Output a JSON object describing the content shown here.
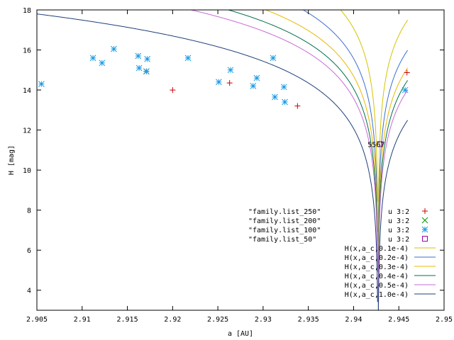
{
  "chart_data": {
    "type": "scatter",
    "xlabel": "a [AU]",
    "ylabel": "H [mag]",
    "xlim": [
      2.905,
      2.95
    ],
    "ylim": [
      3,
      18
    ],
    "x_ticks": [
      {
        "value": 2.905,
        "label": "2.905"
      },
      {
        "value": 2.91,
        "label": "2.91"
      },
      {
        "value": 2.915,
        "label": "2.915"
      },
      {
        "value": 2.92,
        "label": "2.92"
      },
      {
        "value": 2.925,
        "label": "2.925"
      },
      {
        "value": 2.93,
        "label": "2.93"
      },
      {
        "value": 2.935,
        "label": "2.935"
      },
      {
        "value": 2.94,
        "label": "2.94"
      },
      {
        "value": 2.945,
        "label": "2.945"
      },
      {
        "value": 2.95,
        "label": "2.95"
      }
    ],
    "y_ticks": [
      {
        "value": 4,
        "label": "4"
      },
      {
        "value": 6,
        "label": "6"
      },
      {
        "value": 8,
        "label": "8"
      },
      {
        "value": 10,
        "label": "10"
      },
      {
        "value": 12,
        "label": "12"
      },
      {
        "value": 14,
        "label": "14"
      },
      {
        "value": 16,
        "label": "16"
      },
      {
        "value": 18,
        "label": "18"
      }
    ],
    "grid": false,
    "legend_position": "bottom-right",
    "annotation": {
      "text": "5567",
      "x": 2.9425,
      "y": 11.3
    },
    "scatter_series": [
      {
        "name": "\"family.list_250\"",
        "legend_suffix": "u 3:2",
        "marker": "plus",
        "color": "#cc0000",
        "points": [
          [
            2.92,
            14.0
          ],
          [
            2.9263,
            14.35
          ],
          [
            2.9338,
            13.2
          ],
          [
            2.9459,
            14.87
          ],
          [
            2.9171,
            14.93
          ]
        ]
      },
      {
        "name": "\"family.list_200\"",
        "legend_suffix": "u 3:2",
        "marker": "cross",
        "color": "#009900",
        "points": [
          [
            2.9171,
            14.93
          ]
        ]
      },
      {
        "name": "\"family.list_100\"",
        "legend_suffix": "u 3:2",
        "marker": "star",
        "color": "#1a9ae6",
        "points": [
          [
            2.9055,
            14.3
          ],
          [
            2.9112,
            15.6
          ],
          [
            2.9122,
            15.35
          ],
          [
            2.9135,
            16.05
          ],
          [
            2.9162,
            15.7
          ],
          [
            2.9163,
            15.1
          ],
          [
            2.9172,
            15.55
          ],
          [
            2.9217,
            15.6
          ],
          [
            2.9251,
            14.4
          ],
          [
            2.9264,
            15.0
          ],
          [
            2.9289,
            14.2
          ],
          [
            2.9293,
            14.6
          ],
          [
            2.9311,
            15.6
          ],
          [
            2.9313,
            13.65
          ],
          [
            2.9323,
            14.15
          ],
          [
            2.9324,
            13.4
          ],
          [
            2.9457,
            14.0
          ],
          [
            2.9171,
            14.93
          ]
        ]
      },
      {
        "name": "\"family.list_50\"",
        "legend_suffix": "u 3:2",
        "marker": "square",
        "color": "#9900aa",
        "points": [
          [
            2.9429,
            11.3
          ]
        ]
      }
    ],
    "curve_series": [
      {
        "name": "H(x,a_c,0.1e-4)",
        "C": 0.1,
        "color": "#d4c400"
      },
      {
        "name": "H(x,a_c,0.2e-4)",
        "C": 0.2,
        "color": "#3a6fd0"
      },
      {
        "name": "H(x,a_c,0.3e-4)",
        "C": 0.3,
        "color": "#e8b800"
      },
      {
        "name": "H(x,a_c,0.4e-4)",
        "C": 0.4,
        "color": "#00704a"
      },
      {
        "name": "H(x,a_c,0.5e-4)",
        "C": 0.5,
        "color": "#c86ad8"
      },
      {
        "name": "H(x,a_c,1.0e-4)",
        "C": 1.0,
        "color": "#1e3f7a"
      }
    ],
    "curve_center_a": 2.9427,
    "curve_x_range": [
      2.905,
      2.946
    ]
  }
}
